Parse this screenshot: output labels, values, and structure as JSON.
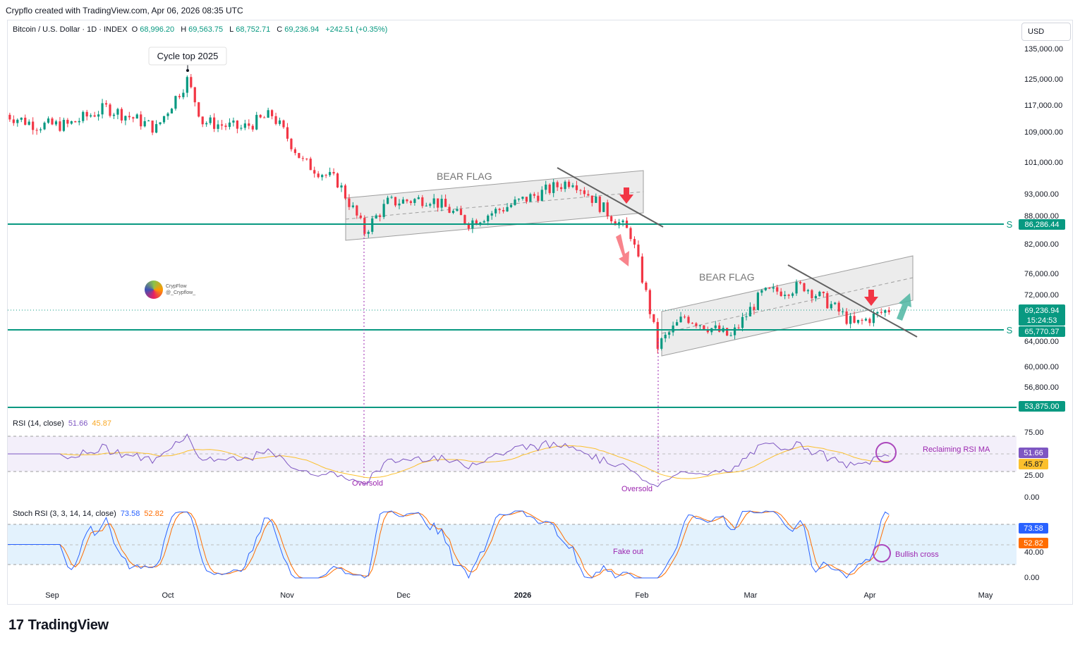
{
  "header": {
    "credit": "Crypflo created with TradingView.com, Apr 06, 2026 08:35 UTC"
  },
  "symbol": {
    "name": "Bitcoin / U.S. Dollar · 1D · INDEX",
    "o_label": "O",
    "o": "68,996.20",
    "h_label": "H",
    "h": "69,563.75",
    "l_label": "L",
    "l": "68,752.71",
    "c_label": "C",
    "c": "69,236.94",
    "change": "+242.51 (+0.35%)"
  },
  "currency": "USD",
  "branding": {
    "logo_text": "TradingView",
    "watermark_name": "CrypFlow",
    "watermark_handle": "@_Crypflow_"
  },
  "colors": {
    "bull": "#089981",
    "bear": "#f23645",
    "support": "#089981",
    "rsi": "#7e57c2",
    "rsi_ma": "#fbc02d",
    "stoch_k": "#2962ff",
    "stoch_d": "#ff6d00",
    "annotation": "#9c27b0",
    "flag_fill": "#ececec"
  },
  "rsi_legend": {
    "label": "RSI (14, close)",
    "value": "51.66",
    "ma": "45.87"
  },
  "stoch_legend": {
    "label": "Stoch RSI (3, 3, 14, 14, close)",
    "k": "73.58",
    "d": "52.82"
  },
  "chart_data": [
    {
      "type": "candlestick",
      "title": "Bitcoin / U.S. Dollar · 1D · INDEX",
      "x_axis_labels": [
        "Sep",
        "Oct",
        "Nov",
        "Dec",
        "2026",
        "Feb",
        "Mar",
        "Apr",
        "May"
      ],
      "y_axis_labels": [
        "135,000.00",
        "125,000.00",
        "117,000.00",
        "109,000.00",
        "101,000.00",
        "93,000.00",
        "88,000.00",
        "82,000.00",
        "76,000.00",
        "72,000.00",
        "64,000.00",
        "60,000.00",
        "56,800.00",
        "53,875.00"
      ],
      "scale": "log",
      "ylim": [
        51000,
        140000
      ],
      "last_price": {
        "value": "69,236.94",
        "countdown": "15:24:53"
      },
      "support_levels": [
        {
          "value": 86286.44,
          "label": "86,286.44",
          "marker": "S"
        },
        {
          "value": 65770.37,
          "label": "65,770.37",
          "marker": "S"
        },
        {
          "value": 53875.0,
          "label": "53,875.00",
          "marker": ""
        }
      ],
      "annotations": [
        "Cycle top 2025",
        "BEAR FLAG",
        "BEAR FLAG"
      ],
      "close_path": [
        {
          "date": "2025-08-20",
          "close": 114000
        },
        {
          "date": "2025-08-28",
          "close": 111000
        },
        {
          "date": "2025-09-05",
          "close": 111000
        },
        {
          "date": "2025-09-15",
          "close": 116000
        },
        {
          "date": "2025-09-22",
          "close": 113000
        },
        {
          "date": "2025-09-28",
          "close": 110000
        },
        {
          "date": "2025-10-06",
          "close": 124500
        },
        {
          "date": "2025-10-10",
          "close": 112000
        },
        {
          "date": "2025-10-20",
          "close": 110000
        },
        {
          "date": "2025-10-28",
          "close": 114000
        },
        {
          "date": "2025-11-05",
          "close": 101000
        },
        {
          "date": "2025-11-14",
          "close": 96000
        },
        {
          "date": "2025-11-21",
          "close": 84500
        },
        {
          "date": "2025-11-27",
          "close": 91000
        },
        {
          "date": "2025-12-08",
          "close": 92000
        },
        {
          "date": "2025-12-18",
          "close": 86500
        },
        {
          "date": "2026-01-05",
          "close": 93000
        },
        {
          "date": "2026-01-14",
          "close": 96500
        },
        {
          "date": "2026-01-22",
          "close": 89500
        },
        {
          "date": "2026-01-29",
          "close": 84000
        },
        {
          "date": "2026-02-05",
          "close": 63000
        },
        {
          "date": "2026-02-12",
          "close": 68000
        },
        {
          "date": "2026-02-24",
          "close": 64500
        },
        {
          "date": "2026-03-04",
          "close": 72000
        },
        {
          "date": "2026-03-15",
          "close": 73500
        },
        {
          "date": "2026-03-22",
          "close": 70000
        },
        {
          "date": "2026-03-28",
          "close": 66500
        },
        {
          "date": "2026-04-06",
          "close": 69236.94
        }
      ]
    },
    {
      "type": "line",
      "title": "RSI (14, close)",
      "y_axis_labels": [
        "75.00",
        "25.00",
        "0.00"
      ],
      "ylim": [
        0,
        100
      ],
      "bands": [
        70,
        30
      ],
      "series": [
        {
          "name": "RSI",
          "last": "51.66"
        },
        {
          "name": "RSI MA",
          "last": "45.87"
        }
      ],
      "annotations": [
        "Oversold",
        "Oversold",
        "Reclaiming RSI MA"
      ]
    },
    {
      "type": "line",
      "title": "Stoch RSI (3, 3, 14, 14, close)",
      "y_axis_labels": [
        "40.00",
        "0.00"
      ],
      "ylim": [
        0,
        100
      ],
      "bands": [
        80,
        20
      ],
      "series": [
        {
          "name": "K",
          "last": "73.58"
        },
        {
          "name": "D",
          "last": "52.82"
        }
      ],
      "annotations": [
        "Fake out",
        "Bullish cross"
      ]
    }
  ]
}
